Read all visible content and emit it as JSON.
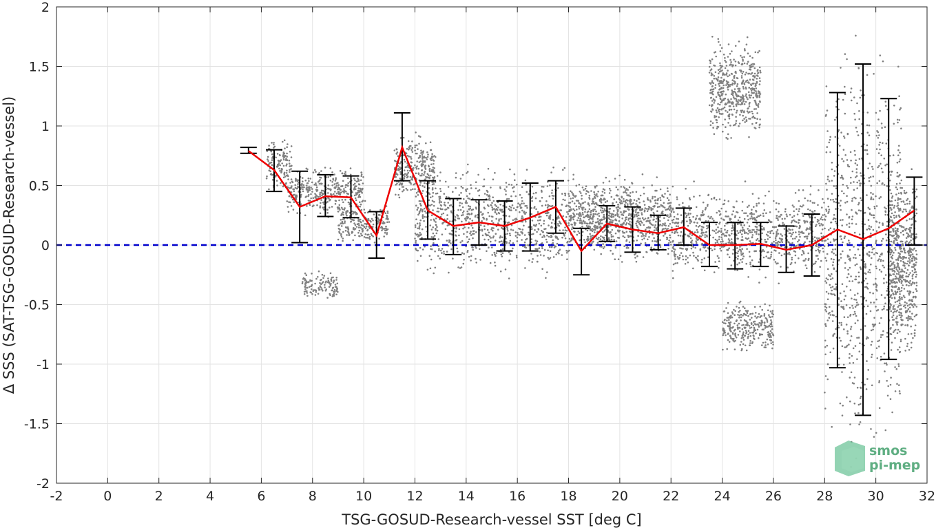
{
  "chart_data": {
    "type": "scatter",
    "xlabel": "TSG-GOSUD-Research-vessel SST [deg C]",
    "ylabel": "Δ SSS (SAT-TSG-GOSUD-Research-vessel)",
    "xlim": [
      -2,
      32
    ],
    "ylim": [
      -2,
      2
    ],
    "xticks": [
      -2,
      0,
      2,
      4,
      6,
      8,
      10,
      12,
      14,
      16,
      18,
      20,
      22,
      24,
      26,
      28,
      30,
      32
    ],
    "yticks": [
      -2,
      -1.5,
      -1,
      -0.5,
      0,
      0.5,
      1,
      1.5,
      2
    ],
    "xtick_labels": [
      "-2",
      "0",
      "2",
      "4",
      "6",
      "8",
      "10",
      "12",
      "14",
      "16",
      "18",
      "20",
      "22",
      "24",
      "26",
      "28",
      "30",
      "32"
    ],
    "ytick_labels": [
      "-2",
      "-1.5",
      "-1",
      "-0.5",
      "0",
      "0.5",
      "1",
      "1.5",
      "2"
    ],
    "grid": true,
    "reference_line": {
      "y": 0,
      "color": "#0000cc",
      "style": "dashed"
    },
    "scatter_color": "#808080",
    "mean_color": "#ee0000",
    "errorbar_color": "#000000",
    "bins": [
      {
        "x": 5.5,
        "mean": 0.79,
        "lower": 0.77,
        "upper": 0.82
      },
      {
        "x": 6.5,
        "mean": 0.63,
        "lower": 0.45,
        "upper": 0.8
      },
      {
        "x": 7.5,
        "mean": 0.32,
        "lower": 0.02,
        "upper": 0.62
      },
      {
        "x": 8.5,
        "mean": 0.41,
        "lower": 0.24,
        "upper": 0.59
      },
      {
        "x": 9.5,
        "mean": 0.4,
        "lower": 0.23,
        "upper": 0.58
      },
      {
        "x": 10.5,
        "mean": 0.08,
        "lower": -0.11,
        "upper": 0.28
      },
      {
        "x": 11.5,
        "mean": 0.82,
        "lower": 0.54,
        "upper": 1.11
      },
      {
        "x": 12.5,
        "mean": 0.29,
        "lower": 0.05,
        "upper": 0.54
      },
      {
        "x": 13.5,
        "mean": 0.16,
        "lower": -0.08,
        "upper": 0.39
      },
      {
        "x": 14.5,
        "mean": 0.19,
        "lower": 0.0,
        "upper": 0.38
      },
      {
        "x": 15.5,
        "mean": 0.16,
        "lower": -0.05,
        "upper": 0.37
      },
      {
        "x": 16.5,
        "mean": 0.23,
        "lower": -0.05,
        "upper": 0.52
      },
      {
        "x": 17.5,
        "mean": 0.32,
        "lower": 0.1,
        "upper": 0.54
      },
      {
        "x": 18.5,
        "mean": -0.05,
        "lower": -0.25,
        "upper": 0.14
      },
      {
        "x": 19.5,
        "mean": 0.18,
        "lower": 0.03,
        "upper": 0.33
      },
      {
        "x": 20.5,
        "mean": 0.13,
        "lower": -0.06,
        "upper": 0.32
      },
      {
        "x": 21.5,
        "mean": 0.1,
        "lower": -0.04,
        "upper": 0.25
      },
      {
        "x": 22.5,
        "mean": 0.15,
        "lower": 0.0,
        "upper": 0.31
      },
      {
        "x": 23.5,
        "mean": 0.0,
        "lower": -0.18,
        "upper": 0.19
      },
      {
        "x": 24.5,
        "mean": 0.0,
        "lower": -0.2,
        "upper": 0.19
      },
      {
        "x": 25.5,
        "mean": 0.01,
        "lower": -0.18,
        "upper": 0.19
      },
      {
        "x": 26.5,
        "mean": -0.04,
        "lower": -0.23,
        "upper": 0.16
      },
      {
        "x": 27.5,
        "mean": 0.0,
        "lower": -0.26,
        "upper": 0.26
      },
      {
        "x": 28.5,
        "mean": 0.13,
        "lower": -1.03,
        "upper": 1.28
      },
      {
        "x": 29.5,
        "mean": 0.05,
        "lower": -1.43,
        "upper": 1.52
      },
      {
        "x": 30.5,
        "mean": 0.14,
        "lower": -0.96,
        "upper": 1.23
      },
      {
        "x": 31.5,
        "mean": 0.29,
        "lower": 0.0,
        "upper": 0.57
      }
    ],
    "scatter_clusters": [
      {
        "x": [
          6.2,
          7.2
        ],
        "y": [
          0.4,
          0.95
        ]
      },
      {
        "x": [
          7.0,
          10.0
        ],
        "y": [
          0.2,
          0.7
        ]
      },
      {
        "x": [
          7.6,
          9.0
        ],
        "y": [
          -0.5,
          -0.2
        ]
      },
      {
        "x": [
          9.0,
          11.0
        ],
        "y": [
          -0.05,
          0.4
        ]
      },
      {
        "x": [
          11.2,
          12.8
        ],
        "y": [
          0.3,
          1.0
        ]
      },
      {
        "x": [
          12.0,
          18.0
        ],
        "y": [
          -0.35,
          0.75
        ]
      },
      {
        "x": [
          18.0,
          22.0
        ],
        "y": [
          -0.2,
          0.65
        ]
      },
      {
        "x": [
          22.0,
          28.0
        ],
        "y": [
          -0.35,
          0.55
        ]
      },
      {
        "x": [
          24.0,
          26.0
        ],
        "y": [
          -0.95,
          -0.4
        ]
      },
      {
        "x": [
          23.5,
          25.5
        ],
        "y": [
          0.8,
          1.8
        ]
      },
      {
        "x": [
          28.0,
          31.0
        ],
        "y": [
          -2.0,
          2.0
        ]
      },
      {
        "x": [
          30.5,
          31.6
        ],
        "y": [
          -1.1,
          0.8
        ]
      }
    ]
  },
  "logo": {
    "line1": "smos",
    "line2": "pi-mep"
  }
}
